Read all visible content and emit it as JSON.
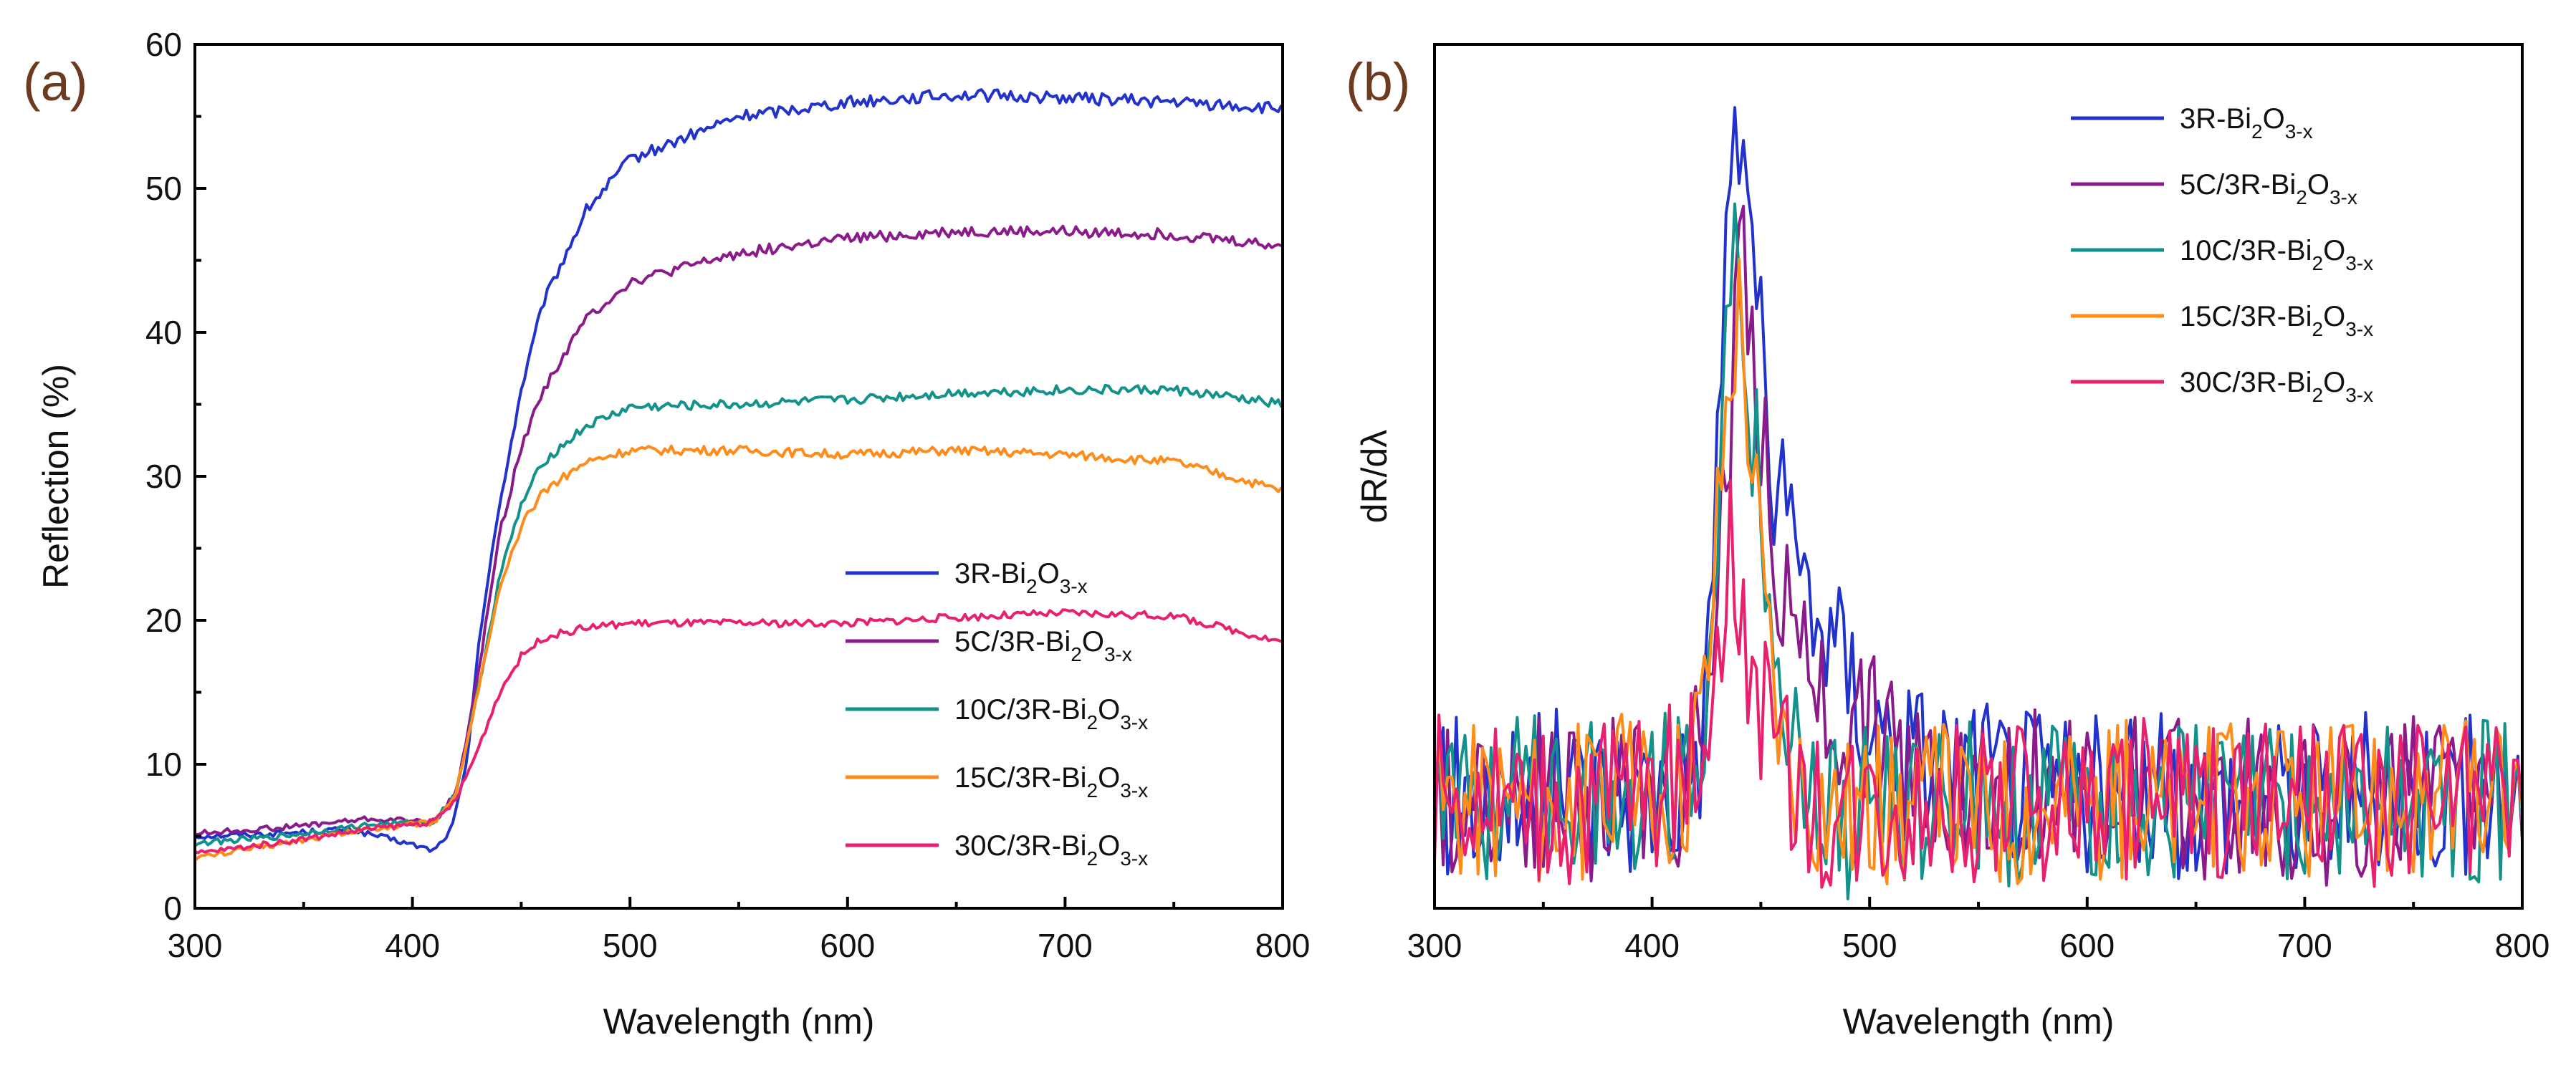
{
  "chart_data": [
    {
      "panel": "(a)",
      "type": "line",
      "xlabel": "Wavelength (nm)",
      "ylabel": "Reflection (%)",
      "xlim": [
        300,
        800
      ],
      "ylim": [
        0,
        60
      ],
      "xticks": [
        300,
        400,
        500,
        600,
        700,
        800
      ],
      "yticks": [
        0,
        10,
        20,
        30,
        40,
        50,
        60
      ],
      "legend_position": "bottom-right",
      "series": [
        {
          "name": "3R-Bi",
          "sub1": "2",
          "mid": "O",
          "sub2": "3-x",
          "color": "#2233cc",
          "x": [
            300,
            340,
            370,
            390,
            410,
            418,
            425,
            430,
            440,
            450,
            460,
            480,
            500,
            550,
            600,
            650,
            700,
            750,
            800
          ],
          "y": [
            5,
            5.2,
            5.5,
            4.8,
            4,
            5.5,
            10,
            18,
            28,
            36,
            42,
            48.5,
            52,
            55,
            56,
            56.5,
            56.3,
            56,
            55.5
          ]
        },
        {
          "name": "5C/3R-Bi",
          "sub1": "2",
          "mid": "O",
          "sub2": "3-x",
          "color": "#8b1a8b",
          "x": [
            300,
            340,
            380,
            410,
            420,
            430,
            440,
            450,
            460,
            480,
            500,
            550,
            600,
            650,
            700,
            750,
            800
          ],
          "y": [
            5.2,
            5.6,
            6.2,
            6,
            8,
            16,
            26,
            32,
            36,
            41,
            43.5,
            45.5,
            46.5,
            47,
            47,
            46.8,
            46
          ]
        },
        {
          "name": "10C/3R-Bi",
          "sub1": "2",
          "mid": "O",
          "sub2": "3-x",
          "color": "#12928a",
          "x": [
            300,
            340,
            380,
            410,
            420,
            430,
            440,
            450,
            460,
            480,
            500,
            550,
            600,
            650,
            700,
            750,
            800
          ],
          "y": [
            4.5,
            5,
            5.8,
            6,
            8,
            15,
            23,
            28,
            31,
            33.5,
            34.8,
            35,
            35.3,
            35.8,
            36,
            36,
            35
          ]
        },
        {
          "name": "15C/3R-Bi",
          "sub1": "2",
          "mid": "O",
          "sub2": "3-x",
          "color": "#ff8c1a",
          "x": [
            300,
            340,
            380,
            410,
            420,
            430,
            440,
            450,
            460,
            480,
            500,
            550,
            600,
            650,
            700,
            750,
            800
          ],
          "y": [
            3.5,
            4.5,
            5.5,
            6,
            8,
            15,
            22,
            26.5,
            29,
            31,
            31.8,
            31.8,
            31.5,
            31.8,
            31.5,
            31,
            29
          ]
        },
        {
          "name": "30C/3R-Bi",
          "sub1": "2",
          "mid": "O",
          "sub2": "3-x",
          "color": "#e8206e",
          "x": [
            300,
            340,
            380,
            410,
            420,
            430,
            440,
            450,
            460,
            480,
            500,
            550,
            600,
            650,
            700,
            750,
            800
          ],
          "y": [
            3.8,
            4.6,
            5.5,
            6,
            7.5,
            11,
            15,
            17.5,
            18.8,
            19.5,
            19.8,
            19.8,
            19.8,
            20.2,
            20.5,
            20.3,
            18.5
          ]
        }
      ]
    },
    {
      "panel": "(b)",
      "type": "line",
      "xlabel": "Wavelength (nm)",
      "ylabel": "dR/dλ",
      "xlim": [
        300,
        800
      ],
      "ylim": [
        0,
        1
      ],
      "xticks": [
        300,
        400,
        500,
        600,
        700,
        800
      ],
      "yticks": [],
      "legend_position": "top-right",
      "series": [
        {
          "name": "3R-Bi",
          "sub1": "2",
          "mid": "O",
          "sub2": "3-x",
          "color": "#2233cc",
          "x": [
            300,
            330,
            360,
            390,
            415,
            425,
            432,
            437,
            440,
            443,
            448,
            455,
            465,
            480,
            500,
            520,
            560,
            600,
            650,
            700,
            750,
            800
          ],
          "y": [
            0.13,
            0.12,
            0.14,
            0.13,
            0.14,
            0.22,
            0.68,
            0.9,
            0.82,
            0.92,
            0.72,
            0.48,
            0.42,
            0.32,
            0.22,
            0.18,
            0.15,
            0.13,
            0.13,
            0.13,
            0.14,
            0.13
          ]
        },
        {
          "name": "5C/3R-Bi",
          "sub1": "2",
          "mid": "O",
          "sub2": "3-x",
          "color": "#8b1a8b",
          "x": [
            300,
            330,
            360,
            390,
            415,
            425,
            432,
            437,
            442,
            448,
            455,
            465,
            480,
            500,
            520,
            560,
            600,
            650,
            700,
            750,
            800
          ],
          "y": [
            0.13,
            0.13,
            0.12,
            0.13,
            0.14,
            0.2,
            0.45,
            0.62,
            0.75,
            0.6,
            0.42,
            0.3,
            0.24,
            0.2,
            0.16,
            0.14,
            0.13,
            0.13,
            0.12,
            0.13,
            0.12
          ]
        },
        {
          "name": "10C/3R-Bi",
          "sub1": "2",
          "mid": "O",
          "sub2": "3-x",
          "color": "#12928a",
          "x": [
            300,
            330,
            360,
            390,
            415,
            425,
            432,
            437,
            440,
            445,
            452,
            460,
            470,
            485,
            500,
            550,
            600,
            650,
            700,
            750,
            800
          ],
          "y": [
            0.13,
            0.12,
            0.14,
            0.12,
            0.14,
            0.25,
            0.55,
            0.7,
            0.76,
            0.6,
            0.38,
            0.22,
            0.16,
            0.1,
            0.12,
            0.12,
            0.12,
            0.13,
            0.12,
            0.13,
            0.12
          ]
        },
        {
          "name": "15C/3R-Bi",
          "sub1": "2",
          "mid": "O",
          "sub2": "3-x",
          "color": "#ff8c1a",
          "x": [
            300,
            330,
            360,
            390,
            415,
            425,
            432,
            437,
            440,
            445,
            452,
            460,
            470,
            485,
            500,
            550,
            600,
            650,
            700,
            750,
            800
          ],
          "y": [
            0.13,
            0.13,
            0.12,
            0.13,
            0.15,
            0.26,
            0.52,
            0.66,
            0.7,
            0.56,
            0.34,
            0.2,
            0.15,
            0.12,
            0.12,
            0.12,
            0.13,
            0.12,
            0.12,
            0.13,
            0.12
          ]
        },
        {
          "name": "30C/3R-Bi",
          "sub1": "2",
          "mid": "O",
          "sub2": "3-x",
          "color": "#e8206e",
          "x": [
            300,
            330,
            360,
            390,
            415,
            425,
            432,
            436,
            440,
            445,
            452,
            460,
            470,
            485,
            500,
            550,
            600,
            650,
            700,
            750,
            800
          ],
          "y": [
            0.13,
            0.13,
            0.12,
            0.14,
            0.15,
            0.22,
            0.35,
            0.42,
            0.36,
            0.28,
            0.22,
            0.16,
            0.13,
            0.11,
            0.12,
            0.12,
            0.12,
            0.13,
            0.12,
            0.12,
            0.12
          ]
        }
      ]
    }
  ]
}
